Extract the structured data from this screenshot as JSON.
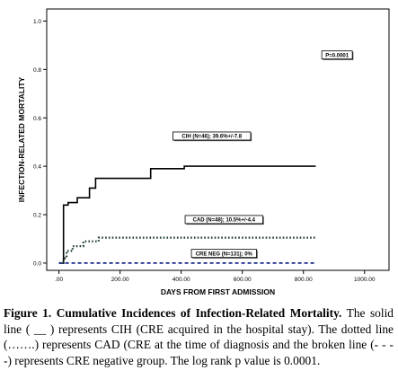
{
  "chart_data": {
    "type": "line",
    "ylabel": "INFECTION-RELATED MORTALITY",
    "xlabel": "DAYS FROM FIRST ADMISSION",
    "xlim": [
      -40,
      1080
    ],
    "ylim": [
      -0.03,
      1.05
    ],
    "x_ticks": [
      0,
      200,
      400,
      600,
      800,
      1000
    ],
    "x_tick_labels": [
      ".00",
      "200.00",
      "400.00",
      "600.00",
      "800.00",
      "1000.00"
    ],
    "y_ticks": [
      0.0,
      0.2,
      0.4,
      0.6,
      0.8,
      1.0
    ],
    "y_tick_labels": [
      "0.0",
      "0.2",
      "0.4",
      "0.6",
      "0.8",
      "1.0"
    ],
    "grid": false,
    "series": [
      {
        "name": "CIH (N=46); 39.6%+/-7.8",
        "style": "solid",
        "color": "#000000",
        "x": [
          0,
          15,
          15,
          30,
          30,
          60,
          60,
          100,
          100,
          120,
          120,
          160,
          160,
          300,
          300,
          410,
          410,
          840
        ],
        "y": [
          0.0,
          0.0,
          0.24,
          0.24,
          0.25,
          0.25,
          0.27,
          0.27,
          0.31,
          0.31,
          0.35,
          0.35,
          0.35,
          0.35,
          0.39,
          0.39,
          0.4,
          0.4
        ]
      },
      {
        "name": "CAD (N=48); 10.5%+/-4.4",
        "style": "dotted",
        "color": "#1a3a2a",
        "x": [
          0,
          15,
          15,
          25,
          25,
          45,
          45,
          80,
          80,
          130,
          130,
          840
        ],
        "y": [
          0.0,
          0.0,
          0.02,
          0.02,
          0.05,
          0.05,
          0.07,
          0.07,
          0.09,
          0.09,
          0.105,
          0.105
        ]
      },
      {
        "name": "CRE NEG (N=131); 0%",
        "style": "dashed",
        "color": "#1b2a8a",
        "x": [
          0,
          840
        ],
        "y": [
          0.0,
          0.0
        ]
      }
    ],
    "annotations": [
      {
        "text": "P=0.0001",
        "x": 910,
        "y": 0.86
      },
      {
        "text": "CIH (N=46); 39.6%+/-7.8",
        "x": 500,
        "y": 0.525
      },
      {
        "text": "CAD (N=48); 10.5%+/-4.4",
        "x": 540,
        "y": 0.18
      },
      {
        "text": "CRE NEG (N=131); 0%",
        "x": 540,
        "y": 0.04
      }
    ]
  },
  "caption": {
    "title": "Figure 1. Cumulative Incidences of Infection-Related Mortality.",
    "body": "The solid line ( __ ) represents CIH (CRE acquired in the hospital stay). The dotted line (…….) represents CAD (CRE at the time of diagnosis and the broken line (- - - -) represents CRE negative group. The log rank p value is 0.0001."
  }
}
